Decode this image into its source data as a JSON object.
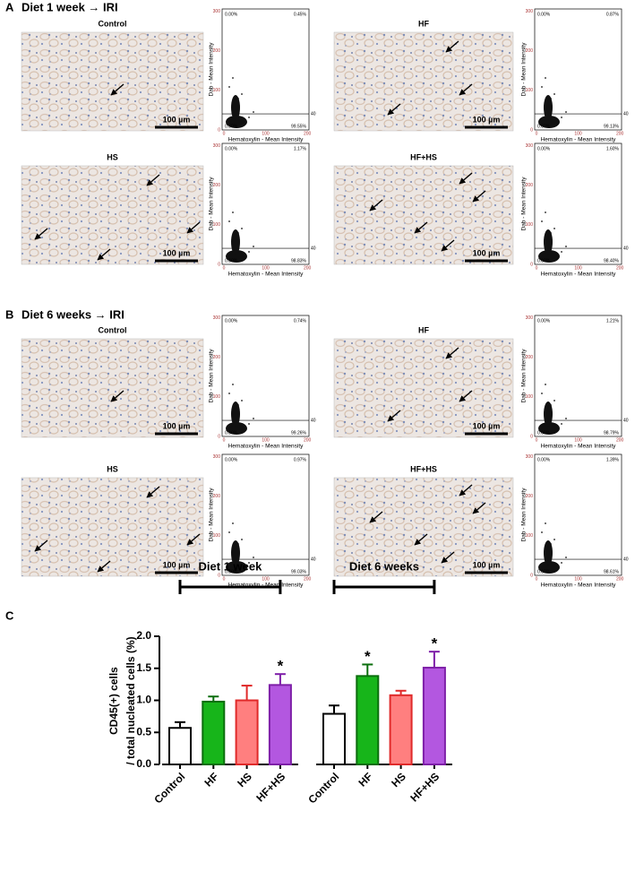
{
  "panel_a": {
    "label": "A",
    "heading": "Diet 1 week → IRI",
    "panels": [
      {
        "title": "Control",
        "scale_bar": "100 µm",
        "scatter": {
          "top_left": "0.00%",
          "top_right": "0.45%",
          "bottom_left": "0.00%",
          "bottom_right": "99.55%",
          "threshold": "40",
          "x_label": "Hematoxylin - Mean Intensity",
          "y_label": "Dab - Mean Intensity",
          "xticks": [
            "0",
            "100",
            "200"
          ],
          "yticks": [
            "0",
            "100",
            "200",
            "300"
          ]
        }
      },
      {
        "title": "HF",
        "scale_bar": "100 µm",
        "scatter": {
          "top_left": "0.00%",
          "top_right": "0.87%",
          "bottom_left": "0.00%",
          "bottom_right": "99.13%",
          "threshold": "40",
          "x_label": "Hematoxylin - Mean Intensity",
          "y_label": "Dab - Mean Intensity",
          "xticks": [
            "0",
            "100",
            "200"
          ],
          "yticks": [
            "0",
            "100",
            "200",
            "300"
          ]
        }
      },
      {
        "title": "HS",
        "scale_bar": "100 µm",
        "scatter": {
          "top_left": "0.00%",
          "top_right": "1.17%",
          "bottom_left": "0.00%",
          "bottom_right": "98.83%",
          "threshold": "40",
          "x_label": "Hematoxylin - Mean Intensity",
          "y_label": "Dab - Mean Intensity",
          "xticks": [
            "0",
            "100",
            "200"
          ],
          "yticks": [
            "0",
            "100",
            "200",
            "300"
          ]
        }
      },
      {
        "title": "HF+HS",
        "scale_bar": "100 µm",
        "scatter": {
          "top_left": "0.00%",
          "top_right": "1.60%",
          "bottom_left": "0.00%",
          "bottom_right": "98.40%",
          "threshold": "40",
          "x_label": "Hematoxylin - Mean Intensity",
          "y_label": "Dab - Mean Intensity",
          "xticks": [
            "0",
            "100",
            "200"
          ],
          "yticks": [
            "0",
            "100",
            "200",
            "300"
          ]
        }
      }
    ]
  },
  "panel_b": {
    "label": "B",
    "heading": "Diet 6 weeks → IRI",
    "panels": [
      {
        "title": "Control",
        "scale_bar": "100 µm",
        "scatter": {
          "top_left": "0.00%",
          "top_right": "0.74%",
          "bottom_left": "0.00%",
          "bottom_right": "99.26%",
          "threshold": "40",
          "x_label": "Hematoxylin - Mean Intensity",
          "y_label": "Dab - Mean Intensity",
          "xticks": [
            "0",
            "100",
            "200"
          ],
          "yticks": [
            "0",
            "100",
            "200",
            "300"
          ]
        }
      },
      {
        "title": "HF",
        "scale_bar": "100 µm",
        "scatter": {
          "top_left": "0.00%",
          "top_right": "1.21%",
          "bottom_left": "0.00%",
          "bottom_right": "98.79%",
          "threshold": "40",
          "x_label": "Hematoxylin - Mean Intensity",
          "y_label": "Dab - Mean Intensity",
          "xticks": [
            "0",
            "100",
            "200"
          ],
          "yticks": [
            "0",
            "100",
            "200",
            "300"
          ]
        }
      },
      {
        "title": "HS",
        "scale_bar": "100 µm",
        "scatter": {
          "top_left": "0.00%",
          "top_right": "0.97%",
          "bottom_left": "0.00%",
          "bottom_right": "99.03%",
          "threshold": "40",
          "x_label": "Hematoxylin - Mean Intensity",
          "y_label": "Dab - Mean Intensity",
          "xticks": [
            "0",
            "100",
            "200"
          ],
          "yticks": [
            "0",
            "100",
            "200",
            "300"
          ]
        }
      },
      {
        "title": "HF+HS",
        "scale_bar": "100 µm",
        "scatter": {
          "top_left": "0.00%",
          "top_right": "1.39%",
          "bottom_left": "0.00%",
          "bottom_right": "98.61%",
          "threshold": "40",
          "x_label": "Hematoxylin - Mean Intensity",
          "y_label": "Dab - Mean Intensity",
          "xticks": [
            "0",
            "100",
            "200"
          ],
          "yticks": [
            "0",
            "100",
            "200",
            "300"
          ]
        }
      }
    ]
  },
  "chart_data": {
    "type": "bar",
    "panel_label": "C",
    "y_label": [
      "CD45(+) cells",
      "/ total nucleated cells (%)"
    ],
    "ylim": [
      0,
      2.0
    ],
    "yticks": [
      {
        "value": 0,
        "label": "0.0"
      },
      {
        "value": 0.5,
        "label": "0.5"
      },
      {
        "value": 1.0,
        "label": "1.0"
      },
      {
        "value": 1.5,
        "label": "1.5"
      },
      {
        "value": 2.0,
        "label": "2.0"
      }
    ],
    "colors": [
      "#ffffff",
      "#17b51a",
      "#ff7f7f",
      "#b357e0"
    ],
    "edge_colors": [
      "#000000",
      "#0b6e0d",
      "#e02a2a",
      "#7e1fa8"
    ],
    "groups": [
      {
        "label": "Diet 1 week",
        "categories": [
          "Control",
          "HF",
          "HS",
          "HF+HS"
        ],
        "values": [
          0.57,
          0.98,
          1.0,
          1.24
        ],
        "errors": [
          0.09,
          0.08,
          0.23,
          0.17
        ],
        "significance": [
          null,
          null,
          null,
          "*"
        ]
      },
      {
        "label": "Diet 6 weeks",
        "categories": [
          "Control",
          "HF",
          "HS",
          "HF+HS"
        ],
        "values": [
          0.79,
          1.38,
          1.08,
          1.51
        ],
        "errors": [
          0.13,
          0.18,
          0.07,
          0.25
        ],
        "significance": [
          null,
          "*",
          null,
          "*"
        ]
      }
    ]
  }
}
